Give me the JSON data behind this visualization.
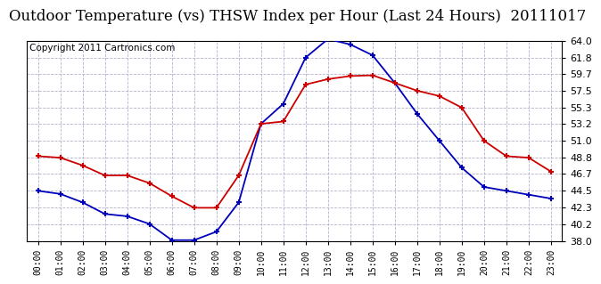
{
  "title": "Outdoor Temperature (vs) THSW Index per Hour (Last 24 Hours)  20111017",
  "copyright": "Copyright 2011 Cartronics.com",
  "hours": [
    "00:00",
    "01:00",
    "02:00",
    "03:00",
    "04:00",
    "05:00",
    "06:00",
    "07:00",
    "08:00",
    "09:00",
    "10:00",
    "11:00",
    "12:00",
    "13:00",
    "14:00",
    "15:00",
    "16:00",
    "17:00",
    "18:00",
    "19:00",
    "20:00",
    "21:00",
    "22:00",
    "23:00"
  ],
  "blue_data": [
    44.5,
    44.1,
    43.0,
    41.5,
    41.2,
    40.2,
    38.1,
    38.1,
    39.2,
    43.0,
    53.2,
    55.8,
    61.8,
    64.2,
    63.5,
    62.1,
    58.5,
    54.5,
    51.0,
    47.5,
    45.0,
    44.5,
    44.0,
    43.5
  ],
  "red_data": [
    49.0,
    48.8,
    47.8,
    46.5,
    46.5,
    45.5,
    43.8,
    42.3,
    42.3,
    46.5,
    53.2,
    53.5,
    58.3,
    59.0,
    59.4,
    59.5,
    58.5,
    57.5,
    56.8,
    55.3,
    51.0,
    49.0,
    48.8,
    47.0
  ],
  "ylim": [
    38.0,
    64.0
  ],
  "yticks": [
    38.0,
    40.2,
    42.3,
    44.5,
    46.7,
    48.8,
    51.0,
    53.2,
    55.3,
    57.5,
    59.7,
    61.8,
    64.0
  ],
  "blue_color": "#0000bb",
  "red_color": "#cc0000",
  "bg_color": "#ffffff",
  "grid_color": "#aaaacc",
  "title_fontsize": 12,
  "copyright_fontsize": 7.5,
  "tick_fontsize": 8,
  "xtick_fontsize": 7
}
